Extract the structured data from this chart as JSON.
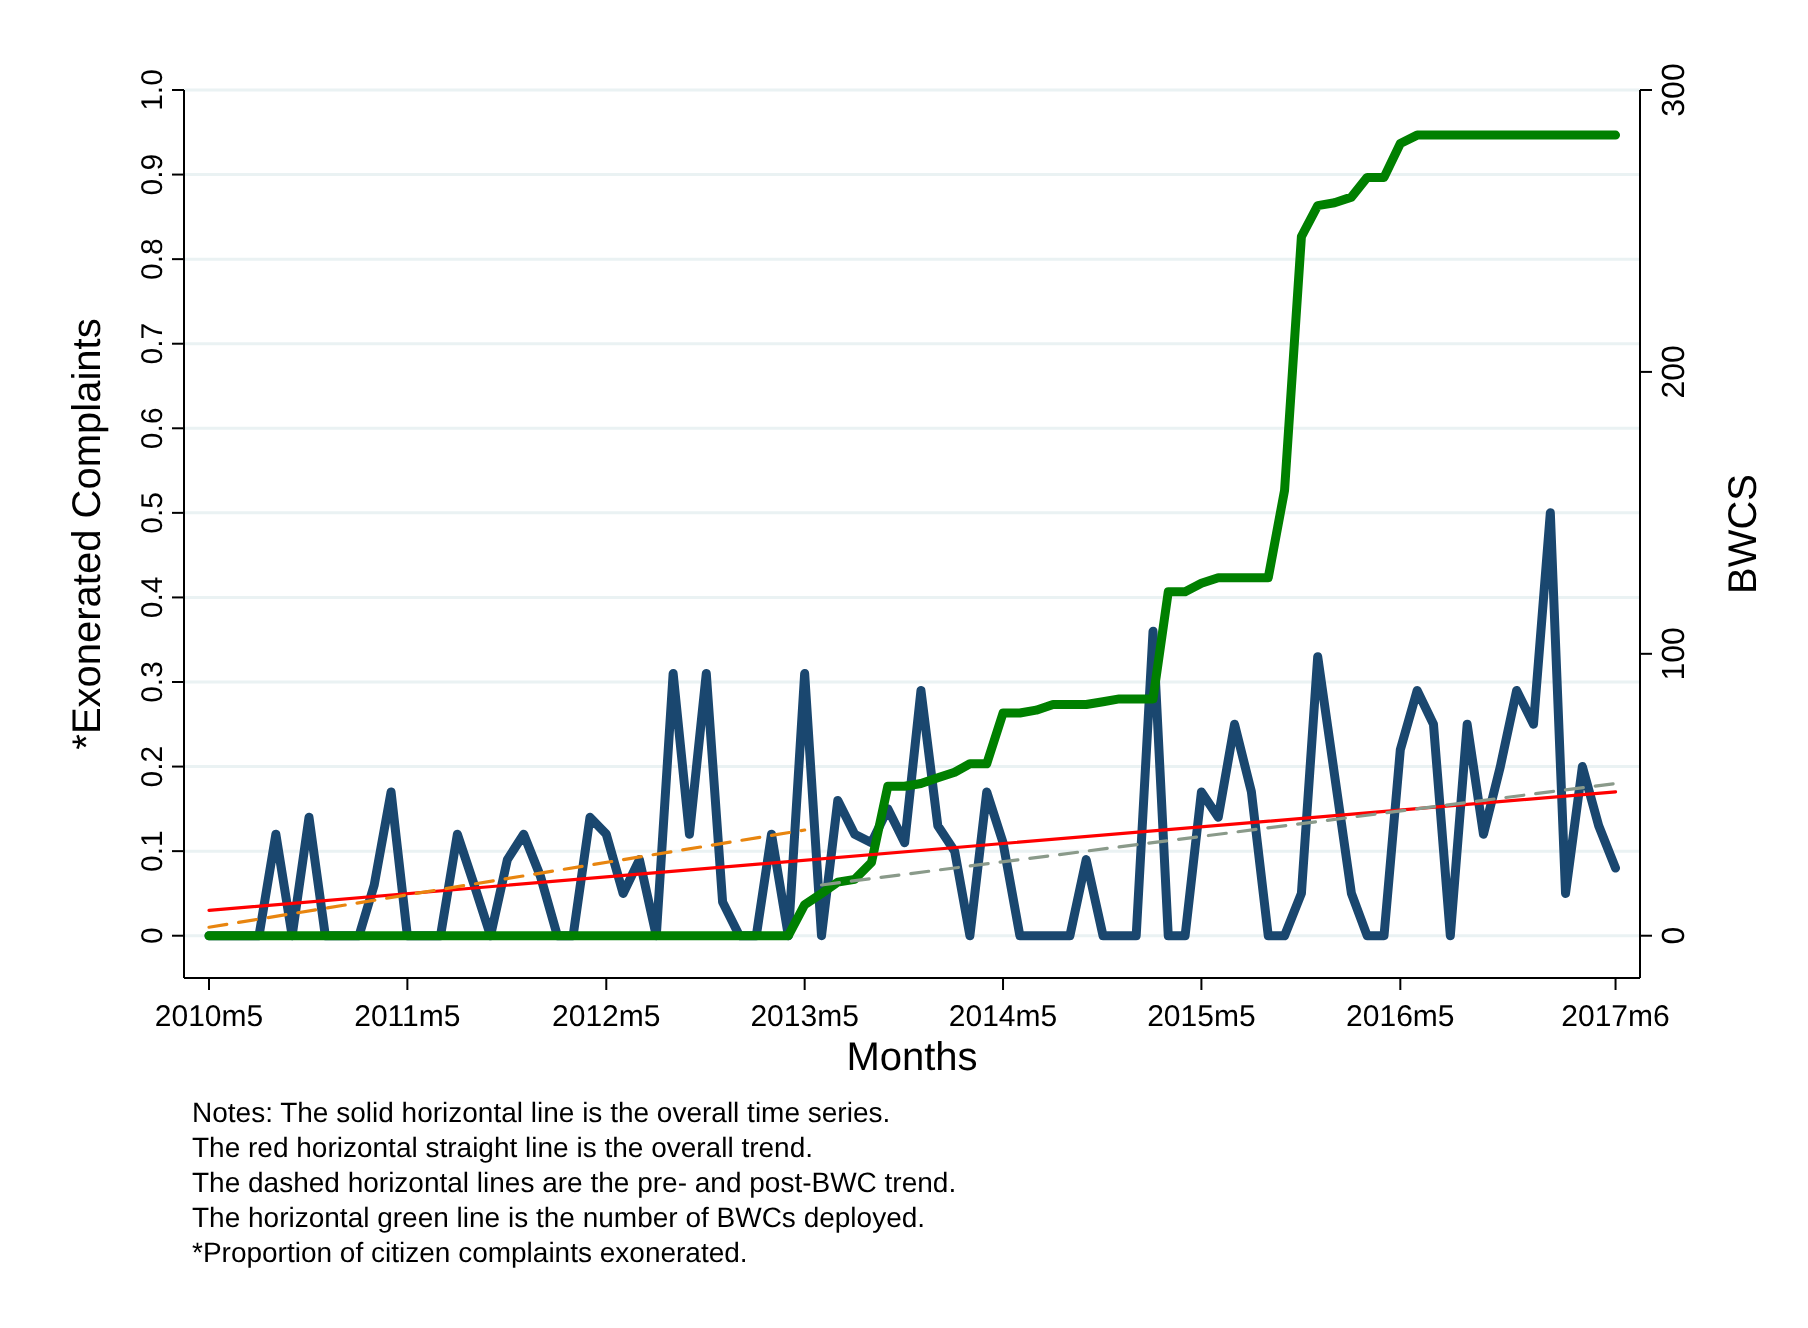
{
  "chart_data": {
    "type": "line",
    "xlabel": "Months",
    "ylabel": "*Exonerated Complaints",
    "y2label": "BWCS",
    "x": [
      "2010-05",
      "2010-06",
      "2010-07",
      "2010-08",
      "2010-09",
      "2010-10",
      "2010-11",
      "2010-12",
      "2011-01",
      "2011-02",
      "2011-03",
      "2011-04",
      "2011-05",
      "2011-06",
      "2011-07",
      "2011-08",
      "2011-09",
      "2011-10",
      "2011-11",
      "2011-12",
      "2012-01",
      "2012-02",
      "2012-03",
      "2012-04",
      "2012-05",
      "2012-06",
      "2012-07",
      "2012-08",
      "2012-09",
      "2012-10",
      "2012-11",
      "2012-12",
      "2013-01",
      "2013-02",
      "2013-03",
      "2013-04",
      "2013-05",
      "2013-06",
      "2013-07",
      "2013-08",
      "2013-09",
      "2013-10",
      "2013-11",
      "2013-12",
      "2014-01",
      "2014-02",
      "2014-03",
      "2014-04",
      "2014-05",
      "2014-06",
      "2014-07",
      "2014-08",
      "2014-09",
      "2014-10",
      "2014-11",
      "2014-12",
      "2015-01",
      "2015-02",
      "2015-03",
      "2015-04",
      "2015-05",
      "2015-06",
      "2015-07",
      "2015-08",
      "2015-09",
      "2015-10",
      "2015-11",
      "2015-12",
      "2016-01",
      "2016-02",
      "2016-03",
      "2016-04",
      "2016-05",
      "2016-06",
      "2016-07",
      "2016-08",
      "2016-09",
      "2016-10",
      "2016-11",
      "2016-12",
      "2017-01",
      "2017-02",
      "2017-03",
      "2017-04",
      "2017-05",
      "2017-06"
    ],
    "series": [
      {
        "color": "#1a476f",
        "values": [
          0,
          0,
          0,
          0,
          0.12,
          0,
          0.14,
          0,
          0,
          0,
          0.06,
          0.17,
          0,
          0,
          0,
          0.12,
          0.06,
          0,
          0.09,
          0.12,
          0.07,
          0,
          0,
          0.14,
          0.12,
          0.05,
          0.09,
          0,
          0.31,
          0.12,
          0.31,
          0.04,
          0,
          0,
          0.12,
          0,
          0.31,
          0,
          0.16,
          0.12,
          0.11,
          0.15,
          0.11,
          0.29,
          0.13,
          0.1,
          0,
          0.17,
          0.11,
          0,
          0,
          0,
          0,
          0.09,
          0,
          0,
          0,
          0.36,
          0,
          0,
          0.17,
          0.14,
          0.25,
          0.17,
          0,
          0,
          0.05,
          0.33,
          0.19,
          0.05,
          0,
          0,
          0.22,
          0.29,
          0.25,
          0,
          0.25,
          0.12,
          0.2,
          0.29,
          0.25,
          0.5,
          0.05,
          0.2,
          0.13,
          0.08
        ]
      },
      {
        "color": "#008000",
        "axis": "y2",
        "values": [
          0,
          0,
          0,
          0,
          0,
          0,
          0,
          0,
          0,
          0,
          0,
          0,
          0,
          0,
          0,
          0,
          0,
          0,
          0,
          0,
          0,
          0,
          0,
          0,
          0,
          0,
          0,
          0,
          0,
          0,
          0,
          0,
          0,
          0,
          0,
          0,
          11,
          15,
          19,
          20,
          26,
          53,
          53,
          54,
          56,
          58,
          61,
          61,
          79,
          79,
          80,
          82,
          82,
          82,
          83,
          84,
          84,
          84,
          122,
          122,
          125,
          127,
          127,
          127,
          127,
          158,
          248,
          259,
          260,
          262,
          269,
          269,
          281,
          284,
          284,
          284,
          284,
          284,
          284,
          284,
          284,
          284,
          284,
          284,
          284,
          284
        ]
      },
      {
        "color": "#ff0000",
        "x": [
          "2010-05",
          "2017-06"
        ],
        "values": [
          0.03,
          0.17
        ]
      },
      {
        "color": "#e8850f",
        "x": [
          "2010-05",
          "2013-05"
        ],
        "values": [
          0.01,
          0.125
        ],
        "line_style": "dashed"
      },
      {
        "color": "#8a9a8a",
        "x": [
          "2013-06",
          "2017-06"
        ],
        "values": [
          0.06,
          0.18
        ],
        "line_style": "dashed"
      }
    ],
    "xlim": [
      "2010-03-16",
      "2017-07-16"
    ],
    "xticks": [
      {
        "value": "2010-05",
        "label": "2010m5"
      },
      {
        "value": "2011-05",
        "label": "2011m5"
      },
      {
        "value": "2012-05",
        "label": "2012m5"
      },
      {
        "value": "2013-05",
        "label": "2013m5"
      },
      {
        "value": "2014-05",
        "label": "2014m5"
      },
      {
        "value": "2015-05",
        "label": "2015m5"
      },
      {
        "value": "2016-05",
        "label": "2016m5"
      },
      {
        "value": "2017-06",
        "label": "2017m6"
      }
    ],
    "ylim": [
      -0.05,
      1
    ],
    "yticks": [
      0,
      0.1,
      0.2,
      0.3,
      0.4,
      0.5,
      0.6,
      0.7,
      0.8,
      0.9,
      {
        "value": 1,
        "label": "1.0"
      }
    ],
    "y2lim": [
      -15,
      300
    ],
    "y2ticks": [
      0,
      100,
      200,
      300
    ],
    "grid": "y",
    "annotations": [
      "Notes: The solid horizontal line is the overall time series.",
      "The red horizontal straight line is the overall trend.",
      "The dashed horizontal lines are the pre- and post-BWC trend.",
      "The horizontal green line is the number of BWCs deployed.",
      "*Proportion of citizen complaints exonerated."
    ]
  }
}
